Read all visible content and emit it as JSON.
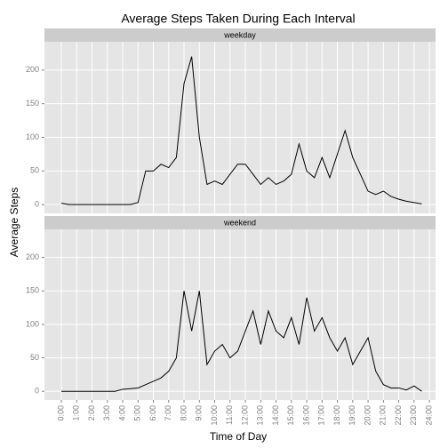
{
  "chart_data": {
    "type": "line",
    "title": "Average Steps Taken During Each Interval",
    "xlabel": "Time of Day",
    "ylabel": "Average Steps",
    "x": [
      0,
      0.5,
      1,
      1.5,
      2,
      2.5,
      3,
      3.5,
      4,
      4.5,
      5,
      5.5,
      6,
      6.5,
      7,
      7.5,
      8,
      8.5,
      9,
      9.5,
      10,
      10.5,
      11,
      11.5,
      12,
      12.5,
      13,
      13.5,
      14,
      14.5,
      15,
      15.5,
      16,
      16.5,
      17,
      17.5,
      18,
      18.5,
      19,
      19.5,
      20,
      20.5,
      21,
      21.5,
      22,
      22.5,
      23,
      23.5
    ],
    "series": [
      {
        "name": "weekday",
        "color": "#000000",
        "values": [
          2,
          0,
          0,
          0,
          0,
          0,
          0,
          0,
          0,
          0,
          3,
          50,
          50,
          60,
          55,
          70,
          180,
          220,
          100,
          30,
          35,
          30,
          45,
          60,
          60,
          45,
          30,
          40,
          30,
          35,
          45,
          90,
          50,
          40,
          70,
          40,
          75,
          110,
          70,
          45,
          20,
          15,
          20,
          12,
          8,
          5,
          3,
          1
        ]
      },
      {
        "name": "weekend",
        "color": "#000000",
        "values": [
          0,
          0,
          0,
          0,
          0,
          0,
          0,
          0,
          3,
          4,
          5,
          10,
          15,
          20,
          30,
          50,
          150,
          90,
          150,
          40,
          60,
          70,
          50,
          60,
          90,
          120,
          70,
          120,
          90,
          80,
          110,
          70,
          140,
          90,
          110,
          80,
          60,
          80,
          40,
          60,
          80,
          30,
          10,
          5,
          5,
          2,
          8,
          0
        ]
      }
    ],
    "xlim": [
      -1.1,
      24.4
    ],
    "xticks": [
      {
        "value": 0,
        "label": "0:00"
      },
      {
        "value": 1,
        "label": "1:00"
      },
      {
        "value": 2,
        "label": "2:00"
      },
      {
        "value": 3,
        "label": "3:00"
      },
      {
        "value": 4,
        "label": "4:00"
      },
      {
        "value": 5,
        "label": "5:00"
      },
      {
        "value": 6,
        "label": "6:00"
      },
      {
        "value": 7,
        "label": "7:00"
      },
      {
        "value": 8,
        "label": "8:00"
      },
      {
        "value": 9,
        "label": "9:00"
      },
      {
        "value": 10,
        "label": "10:00"
      },
      {
        "value": 11,
        "label": "11:00"
      },
      {
        "value": 12,
        "label": "12:00"
      },
      {
        "value": 13,
        "label": "13:00"
      },
      {
        "value": 14,
        "label": "14:00"
      },
      {
        "value": 15,
        "label": "15:00"
      },
      {
        "value": 16,
        "label": "16:00"
      },
      {
        "value": 17,
        "label": "17:00"
      },
      {
        "value": 18,
        "label": "18:00"
      },
      {
        "value": 19,
        "label": "19:00"
      },
      {
        "value": 20,
        "label": "20:00"
      },
      {
        "value": 21,
        "label": "21:00"
      },
      {
        "value": 22,
        "label": "22:00"
      },
      {
        "value": 23,
        "label": "23:00"
      },
      {
        "value": 24,
        "label": "24:00"
      }
    ],
    "ylim": [
      -13,
      242
    ],
    "yticks": [
      0,
      50,
      100,
      150,
      200
    ],
    "grid": true,
    "facet": true
  }
}
